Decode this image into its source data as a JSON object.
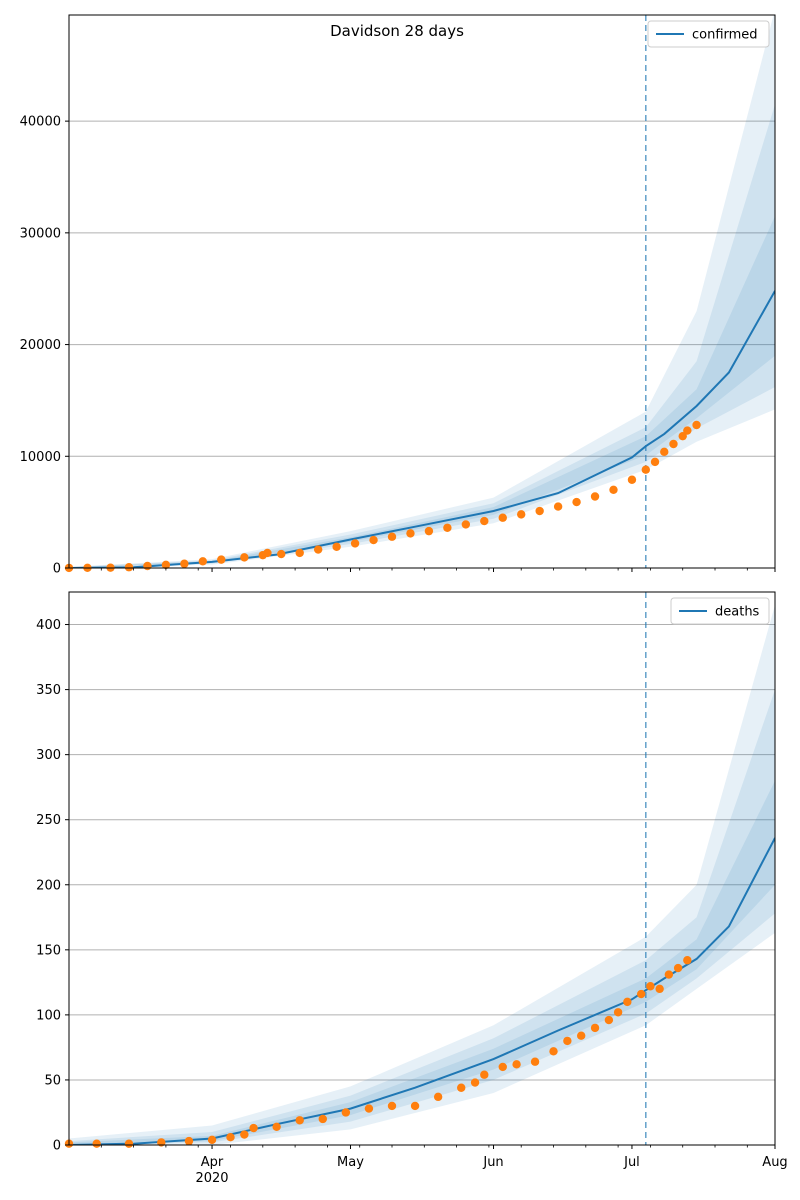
{
  "figure": {
    "title": "Davidson 28 days"
  },
  "chart_data": [
    {
      "type": "line",
      "panel": "top",
      "title": "Davidson 28 days",
      "xlabel": "",
      "ylabel": "",
      "x_type": "date",
      "xlim": [
        "2020-03-01",
        "2020-08-01"
      ],
      "ylim": [
        0,
        49500
      ],
      "yticks": [
        0,
        10000,
        20000,
        30000,
        40000
      ],
      "xtick_labels": [
        {
          "date": "2020-04-01",
          "label": "Apr"
        },
        {
          "date": "2020-05-01",
          "label": "May"
        },
        {
          "date": "2020-06-01",
          "label": "Jun"
        },
        {
          "date": "2020-07-01",
          "label": "Jul"
        },
        {
          "date": "2020-08-01",
          "label": "Aug"
        }
      ],
      "year_label": "2020",
      "grid": "horizontal",
      "legend": {
        "position": "top-right",
        "entries": [
          "confirmed"
        ]
      },
      "forecast_start": "2020-07-04",
      "colors": {
        "model": "#1f77b4",
        "observed": "#ff7f0e",
        "band": "#1f77b4"
      },
      "series": [
        {
          "name": "confirmed",
          "kind": "model-line",
          "points": [
            [
              "2020-03-01",
              0
            ],
            [
              "2020-03-15",
              60
            ],
            [
              "2020-04-01",
              550
            ],
            [
              "2020-04-15",
              1200
            ],
            [
              "2020-05-01",
              2550
            ],
            [
              "2020-05-15",
              3700
            ],
            [
              "2020-06-01",
              5100
            ],
            [
              "2020-06-15",
              6700
            ],
            [
              "2020-07-01",
              9900
            ],
            [
              "2020-07-04",
              10900
            ],
            [
              "2020-07-08",
              12000
            ],
            [
              "2020-07-15",
              14500
            ],
            [
              "2020-07-22",
              17500
            ],
            [
              "2020-08-01",
              24800
            ]
          ],
          "bands": [
            {
              "level": "outer",
              "lower": [
                [
                  "2020-03-01",
                  0
                ],
                [
                  "2020-04-01",
                  300
                ],
                [
                  "2020-05-01",
                  1900
                ],
                [
                  "2020-06-01",
                  4000
                ],
                [
                  "2020-07-04",
                  8800
                ],
                [
                  "2020-07-15",
                  11300
                ],
                [
                  "2020-08-01",
                  14200
                ]
              ],
              "upper": [
                [
                  "2020-03-01",
                  100
                ],
                [
                  "2020-04-01",
                  800
                ],
                [
                  "2020-05-01",
                  3300
                ],
                [
                  "2020-06-01",
                  6300
                ],
                [
                  "2020-07-04",
                  14000
                ],
                [
                  "2020-07-15",
                  23000
                ],
                [
                  "2020-08-01",
                  50000
                ]
              ]
            },
            {
              "level": "middle",
              "lower": [
                [
                  "2020-03-01",
                  0
                ],
                [
                  "2020-04-01",
                  400
                ],
                [
                  "2020-05-01",
                  2150
                ],
                [
                  "2020-06-01",
                  4400
                ],
                [
                  "2020-07-04",
                  9500
                ],
                [
                  "2020-07-15",
                  12500
                ],
                [
                  "2020-08-01",
                  16200
                ]
              ],
              "upper": [
                [
                  "2020-03-01",
                  80
                ],
                [
                  "2020-04-01",
                  700
                ],
                [
                  "2020-05-01",
                  3000
                ],
                [
                  "2020-06-01",
                  5800
                ],
                [
                  "2020-07-04",
                  12600
                ],
                [
                  "2020-07-15",
                  18500
                ],
                [
                  "2020-08-01",
                  41500
                ]
              ]
            },
            {
              "level": "inner",
              "lower": [
                [
                  "2020-03-01",
                  0
                ],
                [
                  "2020-04-01",
                  480
                ],
                [
                  "2020-05-01",
                  2350
                ],
                [
                  "2020-06-01",
                  4750
                ],
                [
                  "2020-07-04",
                  10100
                ],
                [
                  "2020-07-15",
                  13400
                ],
                [
                  "2020-08-01",
                  19000
                ]
              ],
              "upper": [
                [
                  "2020-03-01",
                  70
                ],
                [
                  "2020-04-01",
                  620
                ],
                [
                  "2020-05-01",
                  2750
                ],
                [
                  "2020-06-01",
                  5450
                ],
                [
                  "2020-07-04",
                  11800
                ],
                [
                  "2020-07-15",
                  16000
                ],
                [
                  "2020-08-01",
                  31500
                ]
              ]
            }
          ]
        },
        {
          "name": "observed",
          "kind": "points",
          "points": [
            [
              "2020-03-01",
              10
            ],
            [
              "2020-03-05",
              15
            ],
            [
              "2020-03-10",
              30
            ],
            [
              "2020-03-14",
              70
            ],
            [
              "2020-03-18",
              180
            ],
            [
              "2020-03-22",
              280
            ],
            [
              "2020-03-26",
              380
            ],
            [
              "2020-03-30",
              600
            ],
            [
              "2020-04-03",
              750
            ],
            [
              "2020-04-08",
              950
            ],
            [
              "2020-04-12",
              1150
            ],
            [
              "2020-04-13",
              1350
            ],
            [
              "2020-04-16",
              1250
            ],
            [
              "2020-04-20",
              1350
            ],
            [
              "2020-04-24",
              1650
            ],
            [
              "2020-04-28",
              1900
            ],
            [
              "2020-05-02",
              2200
            ],
            [
              "2020-05-06",
              2500
            ],
            [
              "2020-05-10",
              2800
            ],
            [
              "2020-05-14",
              3100
            ],
            [
              "2020-05-18",
              3300
            ],
            [
              "2020-05-22",
              3600
            ],
            [
              "2020-05-26",
              3900
            ],
            [
              "2020-05-30",
              4200
            ],
            [
              "2020-06-03",
              4500
            ],
            [
              "2020-06-07",
              4800
            ],
            [
              "2020-06-11",
              5100
            ],
            [
              "2020-06-15",
              5500
            ],
            [
              "2020-06-19",
              5900
            ],
            [
              "2020-06-23",
              6400
            ],
            [
              "2020-06-27",
              7000
            ],
            [
              "2020-07-01",
              7900
            ],
            [
              "2020-07-04",
              8800
            ],
            [
              "2020-07-06",
              9500
            ],
            [
              "2020-07-08",
              10400
            ],
            [
              "2020-07-10",
              11100
            ],
            [
              "2020-07-12",
              11800
            ],
            [
              "2020-07-13",
              12300
            ],
            [
              "2020-07-15",
              12800
            ]
          ]
        }
      ]
    },
    {
      "type": "line",
      "panel": "bottom",
      "title": "",
      "xlabel": "",
      "ylabel": "",
      "x_type": "date",
      "xlim": [
        "2020-03-01",
        "2020-08-01"
      ],
      "ylim": [
        0,
        425
      ],
      "yticks": [
        0,
        50,
        100,
        150,
        200,
        250,
        300,
        350,
        400
      ],
      "xtick_labels": [
        {
          "date": "2020-04-01",
          "label": "Apr"
        },
        {
          "date": "2020-05-01",
          "label": "May"
        },
        {
          "date": "2020-06-01",
          "label": "Jun"
        },
        {
          "date": "2020-07-01",
          "label": "Jul"
        },
        {
          "date": "2020-08-01",
          "label": "Aug"
        }
      ],
      "year_label": "2020",
      "grid": "horizontal",
      "legend": {
        "position": "top-right",
        "entries": [
          "deaths"
        ]
      },
      "forecast_start": "2020-07-04",
      "colors": {
        "model": "#1f77b4",
        "observed": "#ff7f0e",
        "band": "#1f77b4"
      },
      "series": [
        {
          "name": "deaths",
          "kind": "model-line",
          "points": [
            [
              "2020-03-01",
              0
            ],
            [
              "2020-03-15",
              1
            ],
            [
              "2020-04-01",
              5
            ],
            [
              "2020-04-15",
              16
            ],
            [
              "2020-05-01",
              28
            ],
            [
              "2020-05-15",
              44
            ],
            [
              "2020-06-01",
              66
            ],
            [
              "2020-06-15",
              88
            ],
            [
              "2020-07-01",
              112
            ],
            [
              "2020-07-04",
              119
            ],
            [
              "2020-07-08",
              128
            ],
            [
              "2020-07-15",
              143
            ],
            [
              "2020-07-22",
              168
            ],
            [
              "2020-08-01",
              236
            ]
          ],
          "bands": [
            {
              "level": "outer",
              "lower": [
                [
                  "2020-03-01",
                  0
                ],
                [
                  "2020-04-01",
                  0
                ],
                [
                  "2020-05-01",
                  12
                ],
                [
                  "2020-06-01",
                  40
                ],
                [
                  "2020-07-04",
                  92
                ],
                [
                  "2020-07-15",
                  120
                ],
                [
                  "2020-08-01",
                  163
                ]
              ],
              "upper": [
                [
                  "2020-03-01",
                  5
                ],
                [
                  "2020-04-01",
                  15
                ],
                [
                  "2020-05-01",
                  45
                ],
                [
                  "2020-06-01",
                  92
                ],
                [
                  "2020-07-04",
                  160
                ],
                [
                  "2020-07-15",
                  200
                ],
                [
                  "2020-08-01",
                  415
                ]
              ]
            },
            {
              "level": "middle",
              "lower": [
                [
                  "2020-03-01",
                  0
                ],
                [
                  "2020-04-01",
                  2
                ],
                [
                  "2020-05-01",
                  18
                ],
                [
                  "2020-06-01",
                  50
                ],
                [
                  "2020-07-04",
                  101
                ],
                [
                  "2020-07-15",
                  128
                ],
                [
                  "2020-08-01",
                  178
                ]
              ],
              "upper": [
                [
                  "2020-03-01",
                  3
                ],
                [
                  "2020-04-01",
                  10
                ],
                [
                  "2020-05-01",
                  38
                ],
                [
                  "2020-06-01",
                  82
                ],
                [
                  "2020-07-04",
                  142
                ],
                [
                  "2020-07-15",
                  175
                ],
                [
                  "2020-08-01",
                  350
                ]
              ]
            },
            {
              "level": "inner",
              "lower": [
                [
                  "2020-03-01",
                  0
                ],
                [
                  "2020-04-01",
                  3
                ],
                [
                  "2020-05-01",
                  23
                ],
                [
                  "2020-06-01",
                  58
                ],
                [
                  "2020-07-04",
                  110
                ],
                [
                  "2020-07-15",
                  135
                ],
                [
                  "2020-08-01",
                  200
                ]
              ],
              "upper": [
                [
                  "2020-03-01",
                  2
                ],
                [
                  "2020-04-01",
                  7
                ],
                [
                  "2020-05-01",
                  33
                ],
                [
                  "2020-06-01",
                  74
                ],
                [
                  "2020-07-04",
                  128
                ],
                [
                  "2020-07-15",
                  158
                ],
                [
                  "2020-08-01",
                  280
                ]
              ]
            }
          ]
        },
        {
          "name": "observed",
          "kind": "points",
          "points": [
            [
              "2020-03-01",
              1
            ],
            [
              "2020-03-07",
              1
            ],
            [
              "2020-03-14",
              1
            ],
            [
              "2020-03-21",
              2
            ],
            [
              "2020-03-27",
              3
            ],
            [
              "2020-04-01",
              4
            ],
            [
              "2020-04-05",
              6
            ],
            [
              "2020-04-08",
              8
            ],
            [
              "2020-04-10",
              13
            ],
            [
              "2020-04-15",
              14
            ],
            [
              "2020-04-20",
              19
            ],
            [
              "2020-04-25",
              20
            ],
            [
              "2020-04-30",
              25
            ],
            [
              "2020-05-05",
              28
            ],
            [
              "2020-05-10",
              30
            ],
            [
              "2020-05-15",
              30
            ],
            [
              "2020-05-20",
              37
            ],
            [
              "2020-05-25",
              44
            ],
            [
              "2020-05-28",
              48
            ],
            [
              "2020-05-30",
              54
            ],
            [
              "2020-06-03",
              60
            ],
            [
              "2020-06-06",
              62
            ],
            [
              "2020-06-10",
              64
            ],
            [
              "2020-06-14",
              72
            ],
            [
              "2020-06-17",
              80
            ],
            [
              "2020-06-20",
              84
            ],
            [
              "2020-06-23",
              90
            ],
            [
              "2020-06-26",
              96
            ],
            [
              "2020-06-28",
              102
            ],
            [
              "2020-06-30",
              110
            ],
            [
              "2020-07-03",
              116
            ],
            [
              "2020-07-05",
              122
            ],
            [
              "2020-07-07",
              120
            ],
            [
              "2020-07-09",
              131
            ],
            [
              "2020-07-11",
              136
            ],
            [
              "2020-07-13",
              142
            ]
          ]
        }
      ]
    }
  ]
}
